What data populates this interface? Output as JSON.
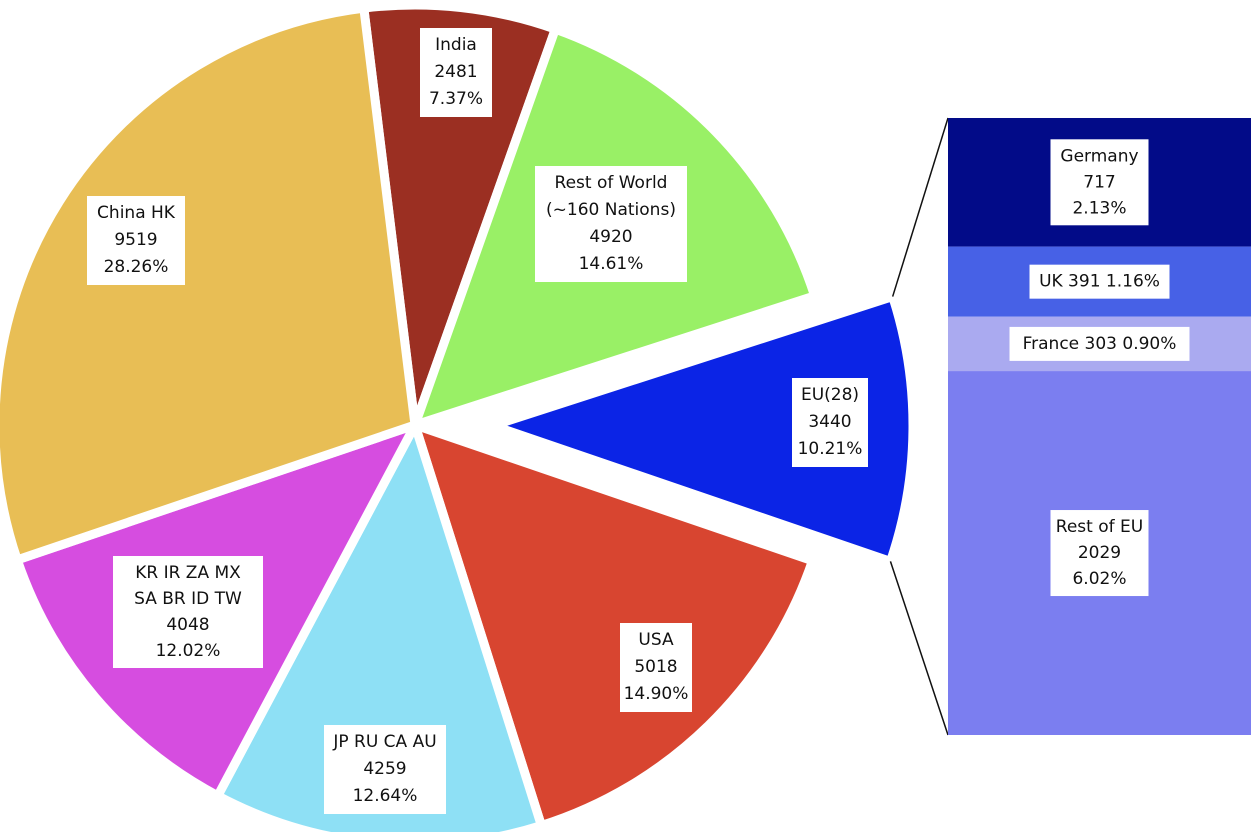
{
  "chart_data": [
    {
      "type": "pie",
      "slices": [
        {
          "lines": [
            "India",
            "2481",
            "7.37%"
          ],
          "value": 2481,
          "percent": 7.37,
          "color": "#9b2f22"
        },
        {
          "lines": [
            "Rest of World",
            "(~160 Nations)",
            "4920",
            "14.61%"
          ],
          "value": 4920,
          "percent": 14.61,
          "color": "#99f066"
        },
        {
          "lines": [
            "EU(28)",
            "3440",
            "10.21%"
          ],
          "value": 3440,
          "percent": 10.21,
          "color": "#0b24e6",
          "exploded": true
        },
        {
          "lines": [
            "USA",
            "5018",
            "14.90%"
          ],
          "value": 5018,
          "percent": 14.9,
          "color": "#d84530"
        },
        {
          "lines": [
            "JP RU CA AU",
            "4259",
            "12.64%"
          ],
          "value": 4259,
          "percent": 12.64,
          "color": "#8ee0f5"
        },
        {
          "lines": [
            "KR IR ZA MX",
            "SA BR ID TW",
            "4048",
            "12.02%"
          ],
          "value": 4048,
          "percent": 12.02,
          "color": "#d64de0"
        },
        {
          "lines": [
            "China HK",
            "9519",
            "28.26%"
          ],
          "value": 9519,
          "percent": 28.26,
          "color": "#e8be55"
        }
      ]
    },
    {
      "type": "bar",
      "stacked": true,
      "breakdown_of": "EU(28)",
      "segments": [
        {
          "lines": [
            "Germany",
            "717",
            "2.13%"
          ],
          "value": 717,
          "percent": 2.13,
          "color": "#020b88"
        },
        {
          "lines": [
            "UK 391 1.16%"
          ],
          "value": 391,
          "percent": 1.16,
          "color": "#4761e6"
        },
        {
          "lines": [
            "France 303 0.90%"
          ],
          "value": 303,
          "percent": 0.9,
          "color": "#aaaaf0"
        },
        {
          "lines": [
            "Rest of EU",
            "2029",
            "6.02%"
          ],
          "value": 2029,
          "percent": 6.02,
          "color": "#7b7ef0"
        }
      ]
    }
  ]
}
